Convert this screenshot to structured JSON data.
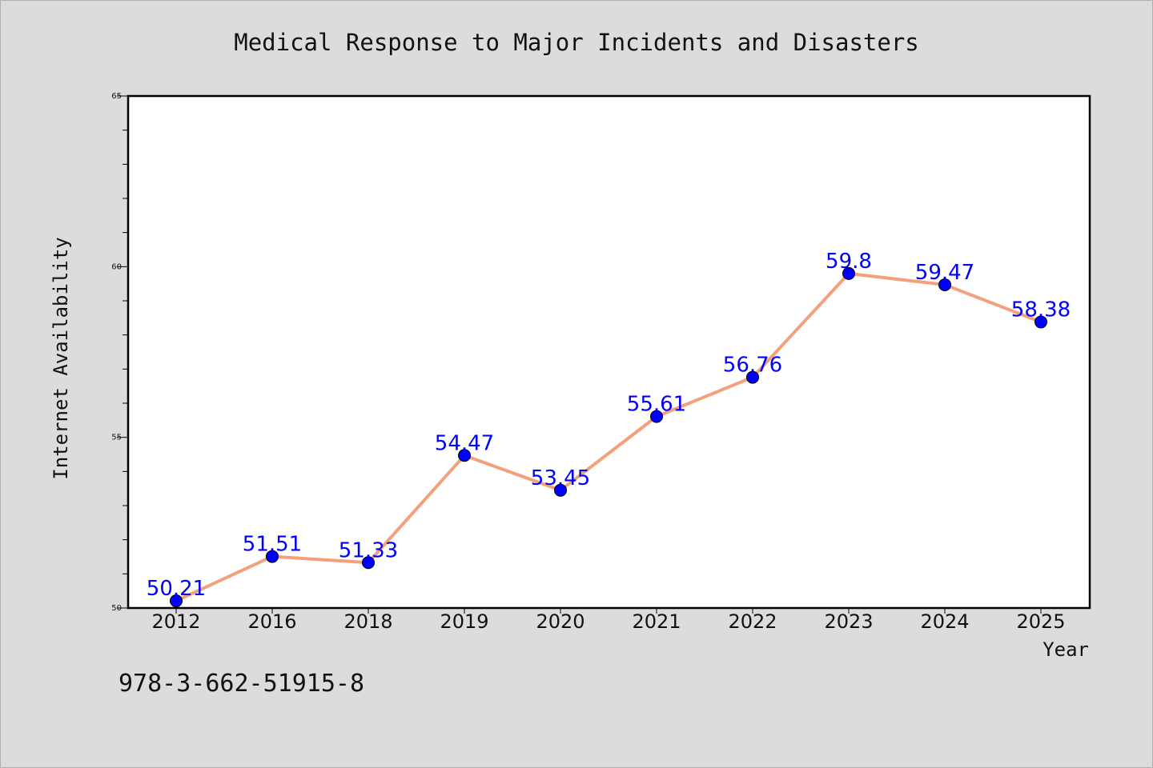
{
  "chart_data": {
    "type": "line",
    "title": "Medical Response to Major Incidents and Disasters",
    "xlabel": "Year",
    "ylabel": "Internet Availability",
    "categories": [
      "2012",
      "2016",
      "2018",
      "2019",
      "2020",
      "2021",
      "2022",
      "2023",
      "2024",
      "2025"
    ],
    "values": [
      50.21,
      51.51,
      51.33,
      54.47,
      53.45,
      55.61,
      56.76,
      59.8,
      59.47,
      58.38
    ],
    "data_labels": [
      "50.21",
      "51.51",
      "51.33",
      "54.47",
      "53.45",
      "55.61",
      "56.76",
      "59.8",
      "59.47",
      "58.38"
    ],
    "ylim": [
      50,
      65
    ],
    "yticks": [
      "50",
      "55",
      "60",
      "65"
    ],
    "grid": false,
    "line_color": "#f4a07c",
    "marker_color": "#0000ff",
    "label_color": "#0000ff"
  },
  "footer": {
    "isbn": "978-3-662-51915-8"
  },
  "colors": {
    "background": "#dcdcdc",
    "plot_background": "#ffffff"
  }
}
